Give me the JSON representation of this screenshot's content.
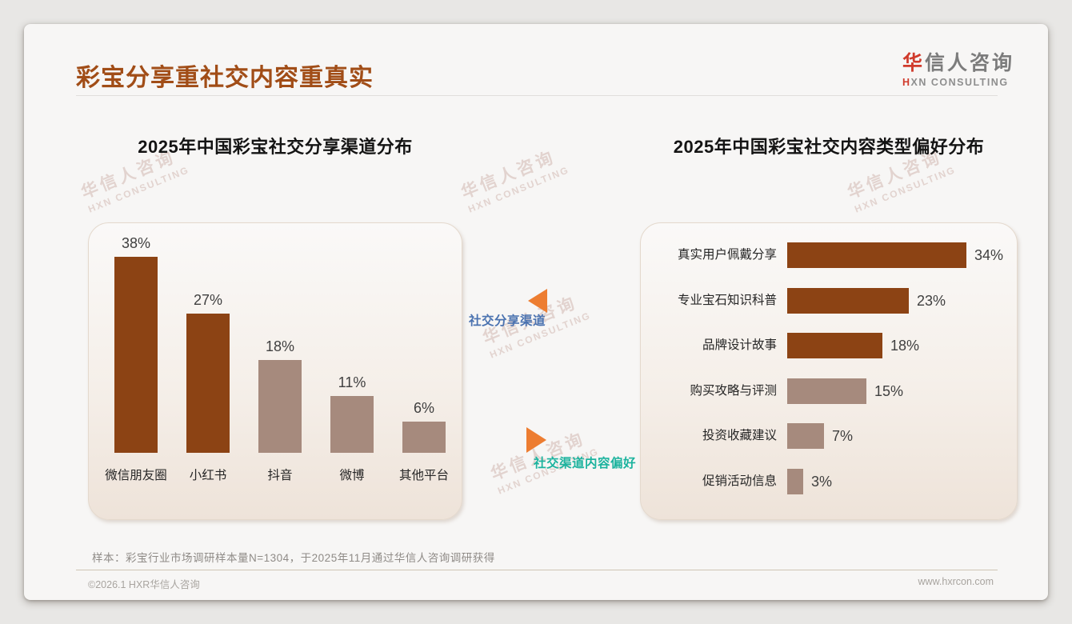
{
  "page": {
    "title": "彩宝分享重社交内容重真实",
    "logo": {
      "zh_first": "华",
      "zh_rest": "信人咨询",
      "en_first": "H",
      "en_rest": "XN CONSULTING"
    },
    "watermark": {
      "line1": "华信人咨询",
      "line2": "HXN CONSULTING"
    },
    "sample_note": "样本：彩宝行业市场调研样本量N=1304，于2025年11月通过华信人咨询调研获得",
    "footer": {
      "copyright": "©2026.1 HXR华信人咨询",
      "website": "www.hxrcon.com"
    }
  },
  "annotations": {
    "top": {
      "label": "社交分享渠道",
      "text_color": "#4a72b0",
      "arrow_direction": "left",
      "arrow_color": "#ed7d31"
    },
    "bottom": {
      "label": "社交渠道内容偏好",
      "text_color": "#1cb39e",
      "arrow_direction": "right",
      "arrow_color": "#ed7d31"
    }
  },
  "chart_data": [
    {
      "type": "bar",
      "orientation": "vertical",
      "title": "2025年中国彩宝社交分享渠道分布",
      "categories": [
        "微信朋友圈",
        "小红书",
        "抖音",
        "微博",
        "其他平台"
      ],
      "values": [
        38,
        27,
        18,
        11,
        6
      ],
      "labels": [
        "38%",
        "27%",
        "18%",
        "11%",
        "6%"
      ],
      "colors": [
        "#8c4314",
        "#8c4314",
        "#a68a7d",
        "#a68a7d",
        "#a68a7d"
      ],
      "unit": "%",
      "ylim": [
        0,
        42
      ],
      "grid": false,
      "legend": "none"
    },
    {
      "type": "bar",
      "orientation": "horizontal",
      "title": "2025年中国彩宝社交内容类型偏好分布",
      "categories": [
        "真实用户佩戴分享",
        "专业宝石知识科普",
        "品牌设计故事",
        "购买攻略与评测",
        "投资收藏建议",
        "促销活动信息"
      ],
      "values": [
        34,
        23,
        18,
        15,
        7,
        3
      ],
      "labels": [
        "34%",
        "23%",
        "18%",
        "15%",
        "7%",
        "3%"
      ],
      "colors": [
        "#8c4314",
        "#8c4314",
        "#8c4314",
        "#a68a7d",
        "#a68a7d",
        "#a68a7d"
      ],
      "unit": "%",
      "xlim": [
        0,
        38
      ],
      "grid": false,
      "legend": "none"
    }
  ]
}
